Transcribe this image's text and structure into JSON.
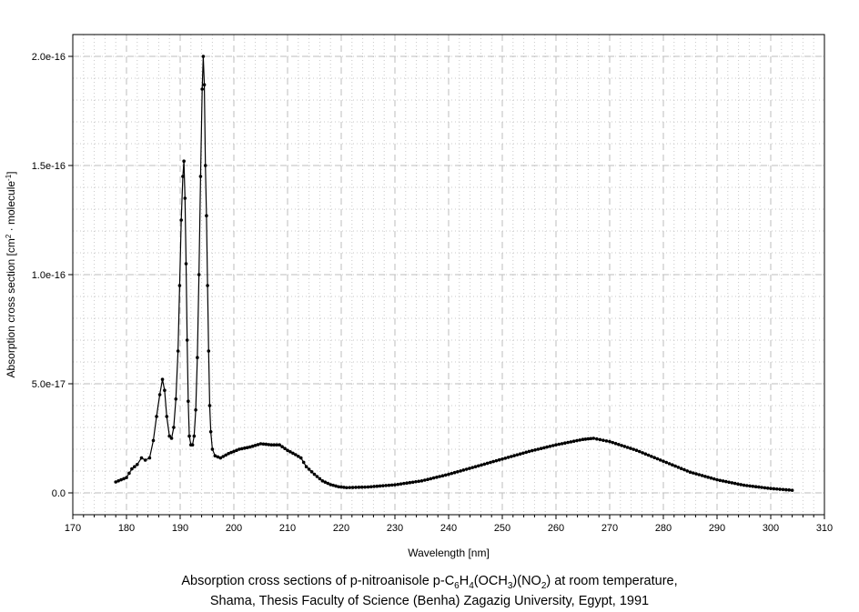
{
  "chart_data": {
    "type": "line",
    "title": "",
    "xlabel": "Wavelength [nm]",
    "ylabel": {
      "prefix": "Absorption cross section [cm",
      "sup1": "2",
      "middle": " · molecule",
      "sup2": "-1",
      "suffix": "]"
    },
    "xlim": [
      170,
      310
    ],
    "ylim": [
      -1e-17,
      2.1e-16
    ],
    "x_ticks": [
      170,
      180,
      190,
      200,
      210,
      220,
      230,
      240,
      250,
      260,
      270,
      280,
      290,
      300,
      310
    ],
    "x_tick_labels": [
      "170",
      "180",
      "190",
      "200",
      "210",
      "220",
      "230",
      "240",
      "250",
      "260",
      "270",
      "280",
      "290",
      "300",
      "310"
    ],
    "y_ticks": [
      0,
      5e-17,
      1e-16,
      1.5e-16,
      2e-16
    ],
    "y_tick_labels": [
      "0.0",
      "5.0e-17",
      "1.0e-16",
      "1.5e-16",
      "2.0e-16"
    ],
    "grid": true,
    "series": [
      {
        "color": "#000000",
        "marker": "dot",
        "points": [
          [
            178.0,
            5e-18
          ],
          [
            179.0,
            6e-18
          ],
          [
            180.0,
            7e-18
          ],
          [
            181.0,
            1.1e-17
          ],
          [
            182.0,
            1.3e-17
          ],
          [
            182.8,
            1.6e-17
          ],
          [
            183.5,
            1.5e-17
          ],
          [
            184.3,
            1.6e-17
          ],
          [
            185.0,
            2.4e-17
          ],
          [
            185.6,
            3.5e-17
          ],
          [
            186.2,
            4.5e-17
          ],
          [
            186.7,
            5.2e-17
          ],
          [
            187.1,
            4.7e-17
          ],
          [
            187.5,
            3.5e-17
          ],
          [
            188.0,
            2.6e-17
          ],
          [
            188.4,
            2.5e-17
          ],
          [
            188.8,
            3e-17
          ],
          [
            189.2,
            4.3e-17
          ],
          [
            189.6,
            6.5e-17
          ],
          [
            189.9,
            9.5e-17
          ],
          [
            190.2,
            1.25e-16
          ],
          [
            190.5,
            1.45e-16
          ],
          [
            190.7,
            1.52e-16
          ],
          [
            190.9,
            1.35e-16
          ],
          [
            191.1,
            1.05e-16
          ],
          [
            191.3,
            7e-17
          ],
          [
            191.5,
            4.2e-17
          ],
          [
            191.7,
            2.6e-17
          ],
          [
            192.0,
            2.2e-17
          ],
          [
            192.3,
            2.2e-17
          ],
          [
            192.6,
            2.6e-17
          ],
          [
            192.9,
            3.8e-17
          ],
          [
            193.2,
            6.2e-17
          ],
          [
            193.5,
            1e-16
          ],
          [
            193.8,
            1.45e-16
          ],
          [
            194.1,
            1.85e-16
          ],
          [
            194.3,
            2e-16
          ],
          [
            194.5,
            1.87e-16
          ],
          [
            194.7,
            1.5e-16
          ],
          [
            194.9,
            1.27e-16
          ],
          [
            195.1,
            9.5e-17
          ],
          [
            195.3,
            6.5e-17
          ],
          [
            195.5,
            4e-17
          ],
          [
            195.7,
            2.8e-17
          ],
          [
            196.0,
            2e-17
          ],
          [
            196.5,
            1.7e-17
          ],
          [
            197.5,
            1.6e-17
          ],
          [
            199.0,
            1.8e-17
          ],
          [
            201.0,
            2e-17
          ],
          [
            203.0,
            2.1e-17
          ],
          [
            205.0,
            2.25e-17
          ],
          [
            207.0,
            2.2e-17
          ],
          [
            208.5,
            2.2e-17
          ],
          [
            210.0,
            1.95e-17
          ],
          [
            211.5,
            1.75e-17
          ],
          [
            212.5,
            1.6e-17
          ],
          [
            213.5,
            1.2e-17
          ],
          [
            215.0,
            8.5e-18
          ],
          [
            216.5,
            5.5e-18
          ],
          [
            218.0,
            3.8e-18
          ],
          [
            219.5,
            2.8e-18
          ],
          [
            221.0,
            2.4e-18
          ],
          [
            225.0,
            2.7e-18
          ],
          [
            230.0,
            3.7e-18
          ],
          [
            235.0,
            5.5e-18
          ],
          [
            240.0,
            8.5e-18
          ],
          [
            245.0,
            1.2e-17
          ],
          [
            250.0,
            1.55e-17
          ],
          [
            255.0,
            1.9e-17
          ],
          [
            260.0,
            2.2e-17
          ],
          [
            265.0,
            2.45e-17
          ],
          [
            267.0,
            2.5e-17
          ],
          [
            270.0,
            2.35e-17
          ],
          [
            275.0,
            1.95e-17
          ],
          [
            280.0,
            1.45e-17
          ],
          [
            285.0,
            9.5e-18
          ],
          [
            290.0,
            6e-18
          ],
          [
            295.0,
            3.5e-18
          ],
          [
            300.0,
            2e-18
          ],
          [
            304.0,
            1.2e-18
          ]
        ]
      }
    ],
    "caption": {
      "line1_a": "Absorption cross sections of p-nitroanisole p-C",
      "sub1": "6",
      "line1_b": "H",
      "sub2": "4",
      "line1_c": "(OCH",
      "sub3": "3",
      "line1_d": ")(NO",
      "sub4": "2",
      "line1_e": ") at room temperature,",
      "line2": "Shama, Thesis Faculty of Science (Benha) Zagazig University, Egypt, 1991"
    }
  }
}
